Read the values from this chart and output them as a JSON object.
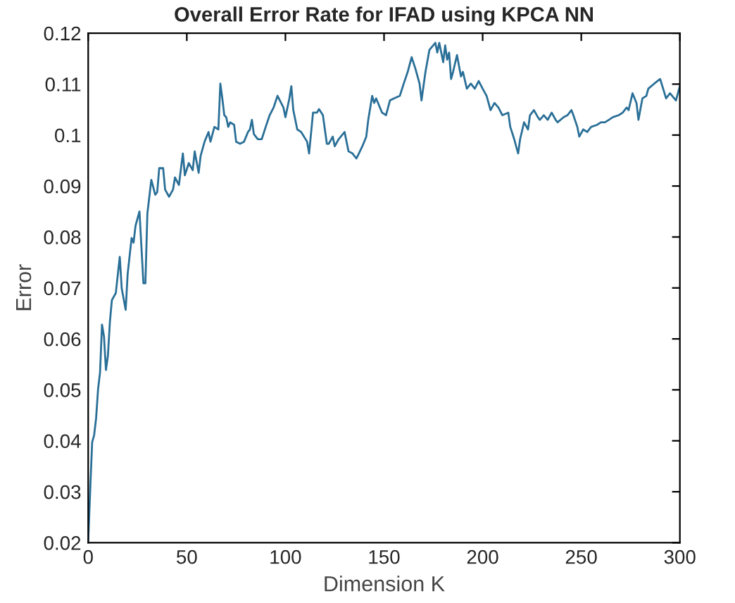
{
  "chart_data": {
    "type": "line",
    "title": "Overall Error Rate for IFAD using KPCA NN",
    "xlabel": "Dimension K",
    "ylabel": "Error",
    "x": [
      0,
      1,
      2,
      3,
      4,
      5,
      6,
      7,
      8,
      9,
      10,
      11,
      12,
      14,
      16,
      17,
      19,
      20,
      22,
      23,
      24,
      26,
      28,
      29,
      30,
      31,
      32,
      34,
      35,
      36,
      38,
      39,
      41,
      43,
      44,
      46,
      48,
      49,
      51,
      53,
      54,
      56,
      57,
      59,
      61,
      62,
      64,
      66,
      67,
      68,
      69,
      70,
      71,
      72,
      74,
      75,
      77,
      79,
      81,
      82,
      83,
      84,
      86,
      88,
      90,
      92,
      94,
      96,
      99,
      100,
      102,
      103,
      104,
      106,
      108,
      111,
      112,
      114,
      116,
      117,
      119,
      121,
      122,
      124,
      125,
      127,
      130,
      132,
      134,
      136,
      139,
      141,
      142,
      144,
      145,
      146,
      149,
      151,
      153,
      155,
      158,
      160,
      162,
      164,
      166,
      168,
      169,
      171,
      173,
      176,
      177,
      178,
      180,
      181,
      182,
      183,
      184,
      185,
      187,
      189,
      190,
      192,
      194,
      196,
      198,
      200,
      202,
      204,
      206,
      208,
      210,
      213,
      214,
      216,
      218,
      219,
      221,
      223,
      224,
      226,
      228,
      229,
      231,
      233,
      235,
      237,
      238,
      241,
      243,
      245,
      246,
      248,
      249,
      251,
      253,
      255,
      258,
      260,
      262,
      264,
      266,
      269,
      271,
      273,
      274,
      276,
      278,
      279,
      281,
      283,
      284,
      287,
      290,
      293,
      295,
      298,
      300
    ],
    "series": [
      {
        "color": "#2a6f97",
        "values": [
          0.0203,
          0.0302,
          0.0397,
          0.0411,
          0.0444,
          0.0501,
          0.0534,
          0.0628,
          0.0605,
          0.0539,
          0.0567,
          0.0633,
          0.0676,
          0.069,
          0.0761,
          0.0699,
          0.0657,
          0.0727,
          0.0798,
          0.0789,
          0.0822,
          0.085,
          0.0709,
          0.0709,
          0.0846,
          0.0879,
          0.0912,
          0.0883,
          0.0888,
          0.0935,
          0.0935,
          0.0893,
          0.0879,
          0.0893,
          0.0917,
          0.0902,
          0.0964,
          0.0921,
          0.0945,
          0.0931,
          0.0968,
          0.0926,
          0.0959,
          0.0987,
          0.1006,
          0.0987,
          0.1016,
          0.1011,
          0.1101,
          0.1072,
          0.1039,
          0.1035,
          0.1016,
          0.1025,
          0.102,
          0.0987,
          0.0983,
          0.0987,
          0.1006,
          0.1011,
          0.103,
          0.1002,
          0.0992,
          0.0992,
          0.1016,
          0.1039,
          0.1054,
          0.1077,
          0.1054,
          0.1035,
          0.1072,
          0.1096,
          0.1049,
          0.1011,
          0.1006,
          0.0987,
          0.0964,
          0.1044,
          0.1044,
          0.1051,
          0.1039,
          0.0983,
          0.0983,
          0.0997,
          0.0978,
          0.0992,
          0.1006,
          0.0968,
          0.0964,
          0.0954,
          0.0978,
          0.0997,
          0.103,
          0.1077,
          0.1063,
          0.1072,
          0.1044,
          0.1039,
          0.1068,
          0.1072,
          0.1077,
          0.1101,
          0.1124,
          0.1153,
          0.1129,
          0.1101,
          0.1068,
          0.1124,
          0.1167,
          0.1181,
          0.1162,
          0.1181,
          0.1143,
          0.1176,
          0.1148,
          0.1162,
          0.111,
          0.1124,
          0.1157,
          0.1115,
          0.1124,
          0.1091,
          0.1101,
          0.1091,
          0.1106,
          0.1091,
          0.1077,
          0.1049,
          0.1063,
          0.1054,
          0.1039,
          0.1044,
          0.1016,
          0.0992,
          0.0964,
          0.0992,
          0.1025,
          0.1011,
          0.1039,
          0.1049,
          0.1035,
          0.103,
          0.1039,
          0.103,
          0.1044,
          0.103,
          0.1025,
          0.1035,
          0.1039,
          0.1049,
          0.1039,
          0.1016,
          0.0997,
          0.1011,
          0.1006,
          0.1016,
          0.102,
          0.1025,
          0.1025,
          0.103,
          0.1035,
          0.1039,
          0.1044,
          0.1054,
          0.1049,
          0.1082,
          0.1063,
          0.103,
          0.1072,
          0.1077,
          0.1091,
          0.1101,
          0.111,
          0.1072,
          0.1082,
          0.1068,
          0.1096
        ]
      }
    ],
    "xlim": [
      0,
      300
    ],
    "ylim": [
      0.02,
      0.12
    ],
    "xticks": [
      0,
      50,
      100,
      150,
      200,
      250,
      300
    ],
    "yticks": [
      0.02,
      0.03,
      0.04,
      0.05,
      0.06,
      0.07,
      0.08,
      0.09,
      0.1,
      0.11,
      0.12
    ],
    "grid": false
  }
}
